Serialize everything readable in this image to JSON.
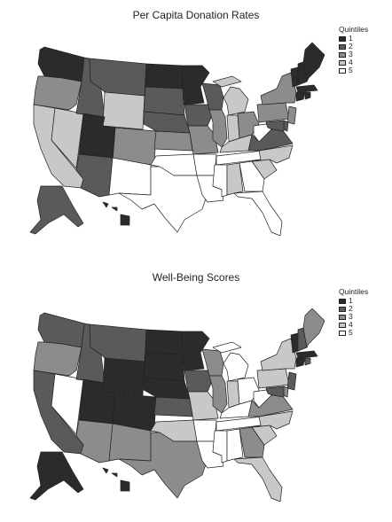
{
  "palette": [
    "#2b2b2b",
    "#5a5a5a",
    "#8c8c8c",
    "#c8c8c8",
    "#ffffff"
  ],
  "maps": [
    {
      "title": "Per Capita Donation Rates",
      "legend": {
        "title": "Quintiles",
        "labels": [
          "1",
          "2",
          "3",
          "4",
          "5"
        ]
      },
      "quintile": {
        "WA": 1,
        "OR": 3,
        "CA": 4,
        "NV": 4,
        "ID": 2,
        "MT": 2,
        "WY": 4,
        "UT": 1,
        "CO": 3,
        "AZ": 2,
        "NM": 5,
        "ND": 1,
        "SD": 2,
        "NE": 2,
        "KS": 3,
        "OK": 5,
        "TX": 5,
        "MN": 1,
        "IA": 2,
        "MO": 3,
        "AR": 5,
        "LA": 5,
        "WI": 2,
        "IL": 3,
        "MI": 4,
        "IN": 4,
        "OH": 3,
        "KY": 4,
        "TN": 5,
        "MS": 5,
        "AL": 4,
        "GA": 5,
        "FL": 5,
        "SC": 4,
        "NC": 4,
        "VA": 2,
        "WV": 5,
        "PA": 3,
        "NY": 3,
        "VT": 1,
        "NH": 1,
        "ME": 1,
        "MA": 1,
        "CT": 1,
        "RI": 1,
        "NJ": 3,
        "DE": 2,
        "MD": 2,
        "AK": 2,
        "HI": 1
      }
    },
    {
      "title": "Well-Being Scores",
      "legend": {
        "title": "Quintiles",
        "labels": [
          "1",
          "2",
          "3",
          "4",
          "5"
        ]
      },
      "quintile": {
        "WA": 2,
        "OR": 3,
        "CA": 2,
        "NV": 5,
        "ID": 2,
        "MT": 2,
        "WY": 1,
        "UT": 1,
        "CO": 1,
        "AZ": 3,
        "NM": 3,
        "ND": 1,
        "SD": 1,
        "NE": 1,
        "KS": 2,
        "OK": 4,
        "TX": 3,
        "MN": 1,
        "IA": 2,
        "MO": 4,
        "AR": 5,
        "LA": 5,
        "WI": 3,
        "IL": 3,
        "MI": 5,
        "IN": 4,
        "OH": 5,
        "KY": 5,
        "TN": 5,
        "MS": 5,
        "AL": 5,
        "GA": 3,
        "FL": 4,
        "SC": 4,
        "NC": 4,
        "VA": 3,
        "WV": 5,
        "PA": 4,
        "NY": 4,
        "VT": 1,
        "NH": 2,
        "ME": 3,
        "MA": 1,
        "CT": 1,
        "RI": 2,
        "NJ": 2,
        "DE": 3,
        "MD": 2,
        "AK": 1,
        "HI": 1
      }
    }
  ]
}
